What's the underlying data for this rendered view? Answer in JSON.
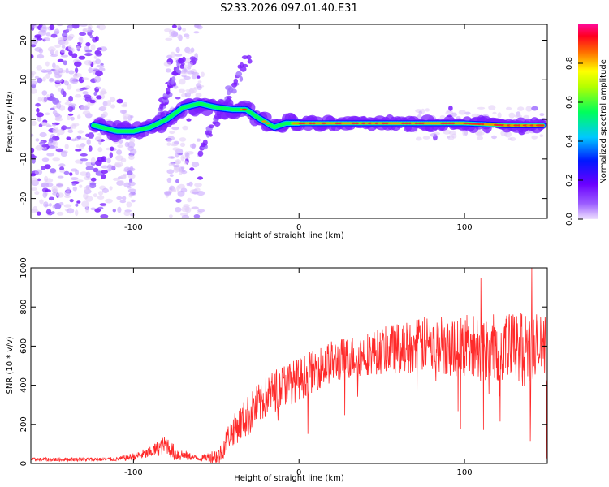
{
  "title": "S233.2026.097.01.40.E31",
  "chart_data": [
    {
      "type": "heatmap",
      "xlabel": "Height of straight line (km)",
      "ylabel": "Frequency (Hz)",
      "xlim": [
        -162,
        150
      ],
      "ylim": [
        -25,
        24
      ],
      "xticks": [
        -100,
        0,
        100
      ],
      "yticks": [
        -20,
        -10,
        0,
        10,
        20
      ],
      "colorbar": {
        "label": "Normalized spectral amplitude",
        "range": [
          0,
          1
        ],
        "ticks": [
          0.0,
          0.2,
          0.4,
          0.6,
          0.8
        ],
        "tick_labels": [
          "0.0",
          "0.2",
          "0.4",
          "0.6",
          "0.8"
        ],
        "colormap": [
          "#e8d8f8",
          "#7000ff",
          "#0000ff",
          "#00e0ff",
          "#00ff00",
          "#ffff00",
          "#ff0000",
          "#ff00a0"
        ]
      },
      "ridge": [
        {
          "x": -124,
          "y": -1.5
        },
        {
          "x": -110,
          "y": -3
        },
        {
          "x": -100,
          "y": -3
        },
        {
          "x": -90,
          "y": -2
        },
        {
          "x": -80,
          "y": 0
        },
        {
          "x": -70,
          "y": 3
        },
        {
          "x": -60,
          "y": 4
        },
        {
          "x": -50,
          "y": 3
        },
        {
          "x": -40,
          "y": 2.5
        },
        {
          "x": -32,
          "y": 2.5
        },
        {
          "x": -25,
          "y": 0.5
        },
        {
          "x": -15,
          "y": -2
        },
        {
          "x": -8,
          "y": -1
        },
        {
          "x": 0,
          "y": -1
        },
        {
          "x": 60,
          "y": -1
        },
        {
          "x": 100,
          "y": -1
        },
        {
          "x": 125,
          "y": -1.5
        },
        {
          "x": 148,
          "y": -1.5
        }
      ],
      "branches": [
        {
          "x0": -60,
          "y0": -8,
          "x1": -30,
          "y1": 16
        },
        {
          "x0": -85,
          "y0": 1,
          "x1": -70,
          "y1": 15
        }
      ],
      "scatter_regions": [
        {
          "x0": -162,
          "x1": -118,
          "y0": -24,
          "y1": 24,
          "density": "high"
        },
        {
          "x0": -80,
          "x1": -58,
          "y0": -25,
          "y1": 24,
          "density": "medium"
        },
        {
          "x0": -118,
          "x1": -100,
          "y0": -25,
          "y1": 5,
          "density": "low"
        },
        {
          "x0": 70,
          "x1": 148,
          "y0": -5,
          "y1": 3,
          "density": "low"
        }
      ]
    },
    {
      "type": "line",
      "xlabel": "Height of straight line (km)",
      "ylabel": "SNR (10 * v/v)",
      "xlim": [
        -162,
        150
      ],
      "ylim": [
        0,
        1000
      ],
      "xticks": [
        -100,
        0,
        100
      ],
      "yticks": [
        0,
        200,
        400,
        600,
        800,
        1000
      ],
      "color": "#ff2a2a",
      "trend": [
        {
          "x": -162,
          "y": 20
        },
        {
          "x": -110,
          "y": 22
        },
        {
          "x": -100,
          "y": 35
        },
        {
          "x": -90,
          "y": 55
        },
        {
          "x": -80,
          "y": 100
        },
        {
          "x": -75,
          "y": 50
        },
        {
          "x": -60,
          "y": 25
        },
        {
          "x": -48,
          "y": 40
        },
        {
          "x": -42,
          "y": 150
        },
        {
          "x": -30,
          "y": 250
        },
        {
          "x": -20,
          "y": 340
        },
        {
          "x": -10,
          "y": 400
        },
        {
          "x": 0,
          "y": 430
        },
        {
          "x": 10,
          "y": 480
        },
        {
          "x": 20,
          "y": 520
        },
        {
          "x": 40,
          "y": 560
        },
        {
          "x": 60,
          "y": 590
        },
        {
          "x": 80,
          "y": 610
        },
        {
          "x": 100,
          "y": 600
        },
        {
          "x": 120,
          "y": 590
        },
        {
          "x": 150,
          "y": 580
        }
      ],
      "fluctuation": [
        {
          "x": -162,
          "y": 10
        },
        {
          "x": -110,
          "y": 10
        },
        {
          "x": -90,
          "y": 30
        },
        {
          "x": -80,
          "y": 50
        },
        {
          "x": -60,
          "y": 10
        },
        {
          "x": -45,
          "y": 60
        },
        {
          "x": -30,
          "y": 110
        },
        {
          "x": 0,
          "y": 110
        },
        {
          "x": 40,
          "y": 110
        },
        {
          "x": 80,
          "y": 150
        },
        {
          "x": 120,
          "y": 180
        },
        {
          "x": 150,
          "y": 200
        }
      ],
      "peak_max": 1000
    }
  ]
}
